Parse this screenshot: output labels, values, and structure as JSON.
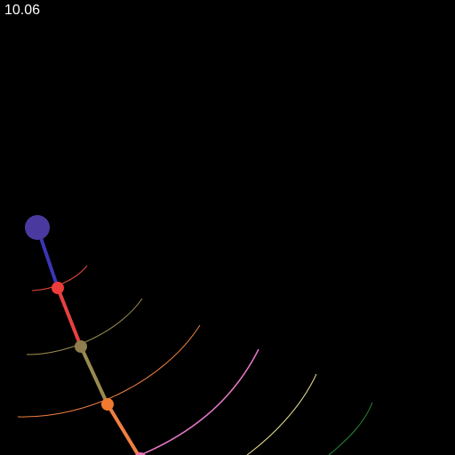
{
  "hud": {
    "time": "10.06"
  },
  "pendulum": {
    "pivot_color": "#4a3aa0",
    "links": [
      {
        "name": "link-1",
        "color": "#3b35b5"
      },
      {
        "name": "link-2",
        "color": "#e84040"
      },
      {
        "name": "link-3",
        "color": "#9a8a50"
      },
      {
        "name": "link-4",
        "color": "#f08040"
      }
    ],
    "bobs": [
      {
        "name": "bob-1",
        "color": "#ee3b3b"
      },
      {
        "name": "bob-2",
        "color": "#8f7d4e"
      },
      {
        "name": "bob-3",
        "color": "#f07a30"
      },
      {
        "name": "bob-4",
        "color": "#e870b0"
      }
    ],
    "trails": [
      {
        "name": "trail-red",
        "color": "#e84a3a"
      },
      {
        "name": "trail-olive",
        "color": "#a09050"
      },
      {
        "name": "trail-orange",
        "color": "#f08040"
      },
      {
        "name": "trail-pink",
        "color": "#e878c8"
      },
      {
        "name": "trail-yellow",
        "color": "#e8e090"
      },
      {
        "name": "trail-green",
        "color": "#2a8a3a"
      }
    ]
  }
}
